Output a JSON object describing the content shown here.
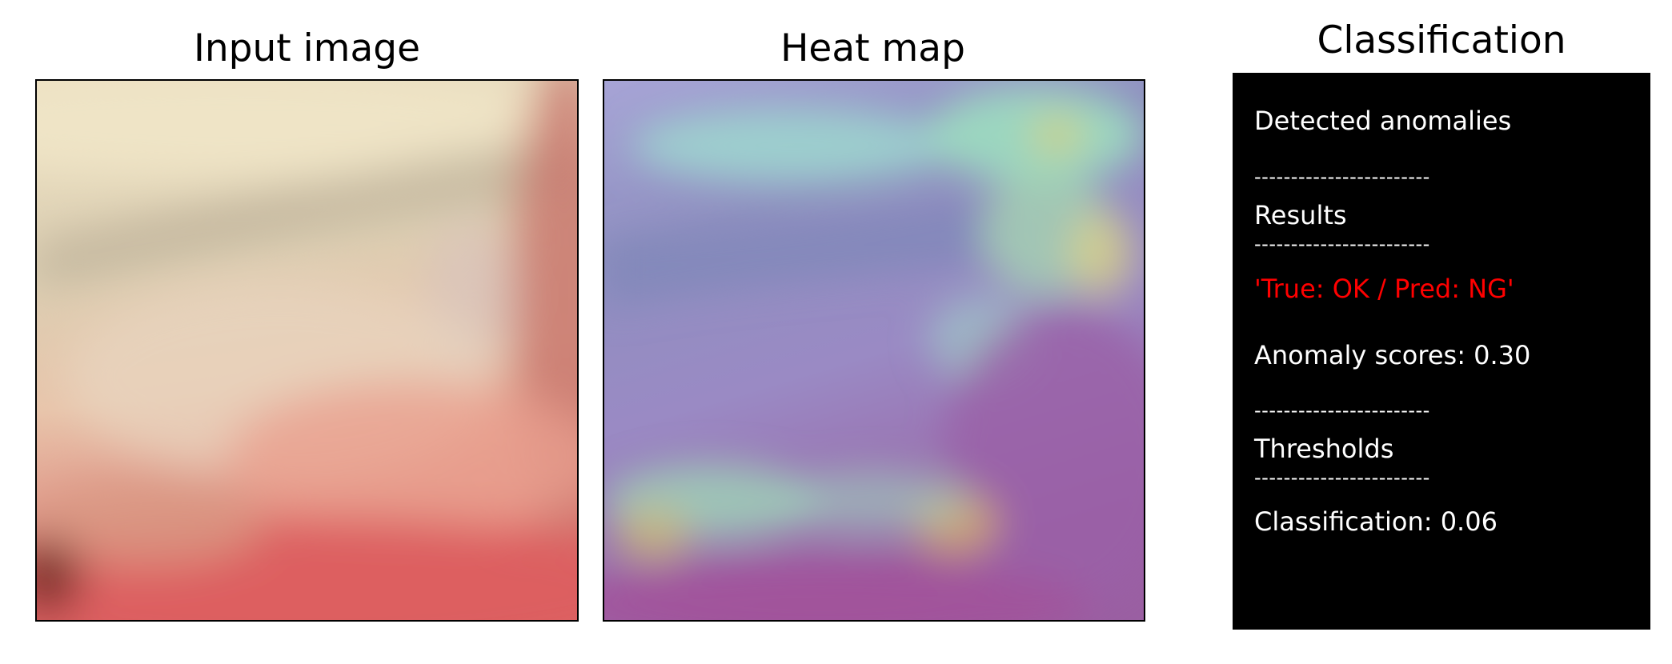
{
  "panels": {
    "input": {
      "title": "Input image"
    },
    "heatmap": {
      "title": "Heat map"
    },
    "classification": {
      "title": "Classification",
      "header": "Detected anomalies",
      "separator": "------------------------",
      "results_label": "Results",
      "verdict": "'True: OK / Pred: NG'",
      "anomaly_score_text": "Anomaly scores: 0.30",
      "thresholds_label": "Thresholds",
      "classification_threshold_text": "Classification: 0.06"
    }
  },
  "colors": {
    "verdict": "#ff0000",
    "box_background": "#000000",
    "box_text": "#ffffff"
  }
}
